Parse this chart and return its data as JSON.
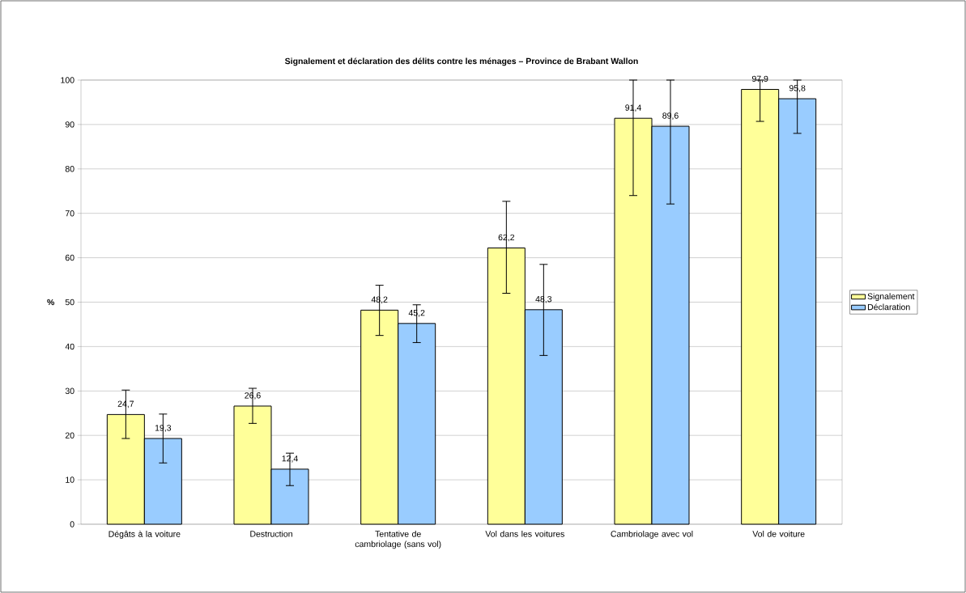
{
  "chart_data": {
    "type": "bar",
    "title": "Signalement et déclaration des délits contre les ménages – Province de Brabant Wallon",
    "ylabel": "%",
    "categories": [
      "Dégâts à la voiture",
      "Destruction",
      "Tentative de cambriolage (sans vol)",
      "Vol dans les voitures",
      "Cambriolage avec vol",
      "Vol de voiture"
    ],
    "series": [
      {
        "name": "Signalement",
        "color": "#ffff99",
        "values": [
          24.7,
          26.6,
          48.2,
          62.2,
          91.4,
          97.9
        ],
        "value_labels": [
          "24,7",
          "26,6",
          "48,2",
          "62,2",
          "91,4",
          "97,9"
        ],
        "errors": [
          [
            19.3,
            30.2
          ],
          [
            22.7,
            30.6
          ],
          [
            42.5,
            53.8
          ],
          [
            52.0,
            72.7
          ],
          [
            74.0,
            100
          ],
          [
            90.7,
            100
          ]
        ]
      },
      {
        "name": "Déclaration",
        "color": "#99ccff",
        "values": [
          19.3,
          12.4,
          45.2,
          48.3,
          89.6,
          95.8
        ],
        "value_labels": [
          "19,3",
          "12,4",
          "45,2",
          "48,3",
          "89,6",
          "95,8"
        ],
        "errors": [
          [
            13.8,
            24.8
          ],
          [
            8.7,
            16.0
          ],
          [
            40.9,
            49.4
          ],
          [
            38.0,
            58.5
          ],
          [
            72.1,
            100
          ],
          [
            88.0,
            100
          ]
        ]
      }
    ],
    "ylim": [
      0,
      100
    ],
    "yticks": [
      0,
      10,
      20,
      30,
      40,
      50,
      60,
      70,
      80,
      90,
      100
    ],
    "grid": "y",
    "legend": "right"
  }
}
